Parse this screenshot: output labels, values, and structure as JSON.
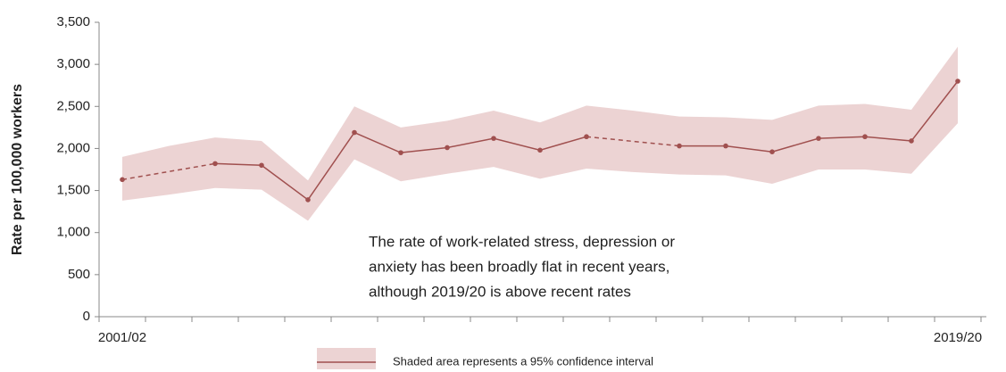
{
  "chart_data": {
    "type": "line",
    "y_label": "Rate per 100,000 workers",
    "categories": [
      "2001/02",
      null,
      null,
      null,
      null,
      null,
      null,
      null,
      null,
      null,
      null,
      null,
      null,
      null,
      null,
      null,
      null,
      null,
      "2019/20"
    ],
    "values": [
      1630,
      null,
      1820,
      1800,
      1390,
      2190,
      1950,
      2010,
      2120,
      1980,
      2140,
      null,
      2030,
      2030,
      1960,
      2120,
      2140,
      2090,
      2800
    ],
    "color": "#a0504f",
    "band": {
      "name": "Shaded area represents a 95% confidence interval",
      "color": "#ecd3d3",
      "upper": [
        1900,
        2030,
        2130,
        2090,
        1620,
        2500,
        2250,
        2330,
        2450,
        2310,
        2510,
        2450,
        2380,
        2370,
        2340,
        2510,
        2530,
        2460,
        3210
      ],
      "lower": [
        1380,
        1450,
        1530,
        1510,
        1140,
        1870,
        1610,
        1700,
        1780,
        1640,
        1760,
        1720,
        1690,
        1680,
        1580,
        1750,
        1750,
        1700,
        2300
      ]
    },
    "ylim": [
      0,
      3500
    ],
    "yticks": [
      0,
      500,
      {
        "value": 1000,
        "label": "1,000"
      },
      {
        "value": 1500,
        "label": "1,500"
      },
      {
        "value": 2000,
        "label": "2,000"
      },
      {
        "value": 2500,
        "label": "2,500"
      },
      {
        "value": 3000,
        "label": "3,000"
      },
      {
        "value": 3500,
        "label": "3,500"
      }
    ],
    "annotation": [
      "The rate of work-related stress, depression or",
      "anxiety has been broadly flat in recent years,",
      "although 2019/20  is above recent rates"
    ]
  }
}
